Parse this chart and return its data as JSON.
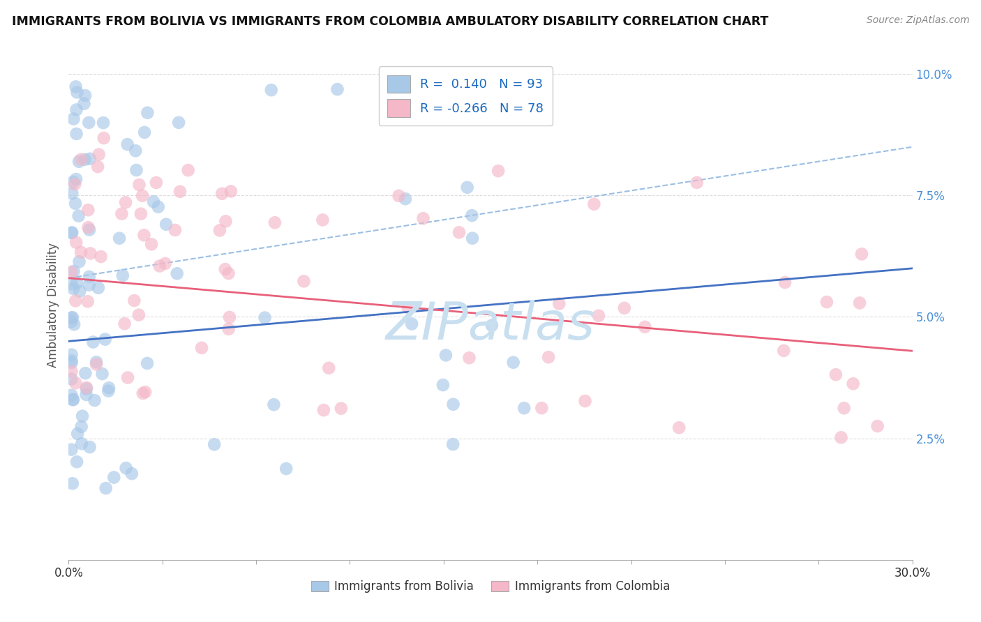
{
  "title": "IMMIGRANTS FROM BOLIVIA VS IMMIGRANTS FROM COLOMBIA AMBULATORY DISABILITY CORRELATION CHART",
  "source": "Source: ZipAtlas.com",
  "ylabel": "Ambulatory Disability",
  "xmin": 0.0,
  "xmax": 0.3,
  "ymin": 0.0,
  "ymax": 0.105,
  "color_bolivia": "#a8c8e8",
  "color_colombia": "#f4b8c8",
  "trendline_bolivia_color": "#4472c4",
  "trendline_colombia_color": "#e8607a",
  "dashed_line_color": "#90b8e0",
  "background_color": "#ffffff",
  "grid_color": "#dddddd",
  "watermark_color": "#c8dff0",
  "R_bolivia": 0.14,
  "N_bolivia": 93,
  "R_colombia": -0.266,
  "N_colombia": 78,
  "seed": 42
}
